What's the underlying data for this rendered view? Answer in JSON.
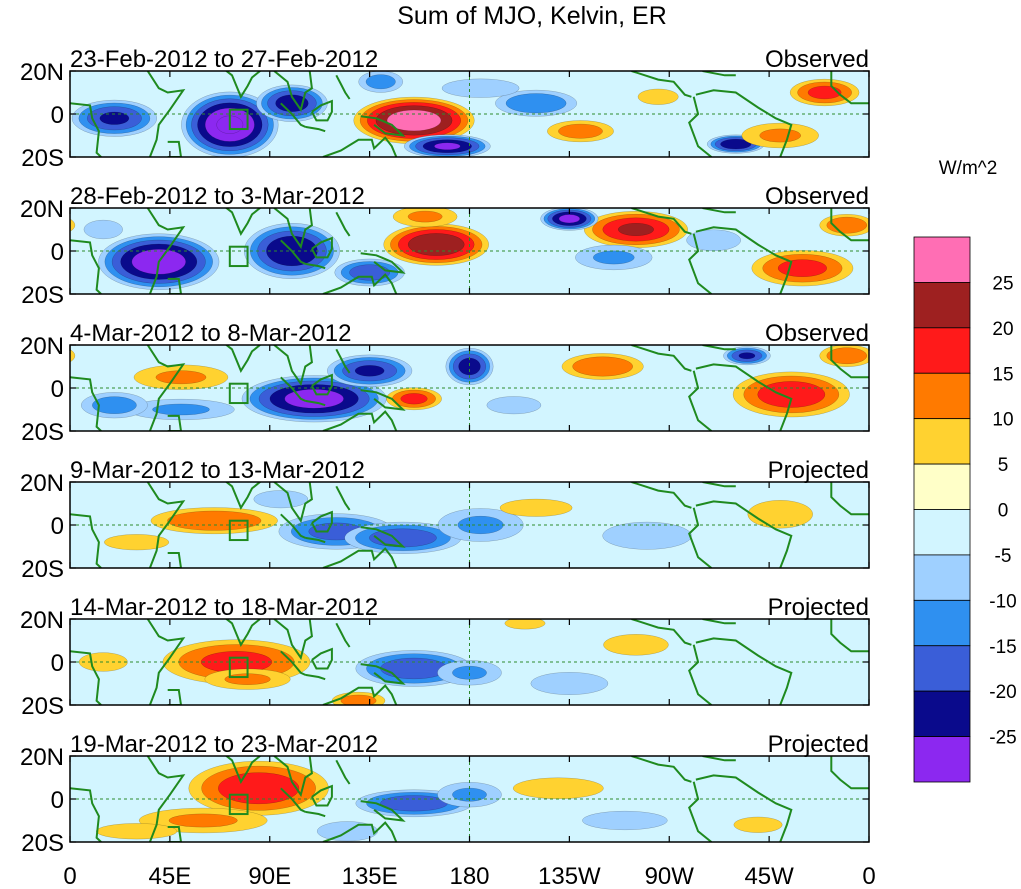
{
  "chart_data": {
    "type": "heatmap",
    "title": "Sum of MJO, Kelvin, ER",
    "units": "W/m^2",
    "x_ticks": [
      "0",
      "45E",
      "90E",
      "135E",
      "180",
      "135W",
      "90W",
      "45W",
      "0"
    ],
    "y_ticks": [
      "20N",
      "0",
      "20S"
    ],
    "xlim": [
      0,
      360
    ],
    "ylim": [
      -20,
      20
    ],
    "colorbar": {
      "labels": [
        "25",
        "20",
        "15",
        "10",
        "5",
        "0",
        "-5",
        "-10",
        "-15",
        "-20",
        "-25"
      ],
      "colors": [
        "#ff6eb4",
        "#9e2020",
        "#ff1a1a",
        "#ff7a00",
        "#ffd230",
        "#ffffc8",
        "#d2f5ff",
        "#9fd0ff",
        "#2f90f0",
        "#3a5ed8",
        "#0a0a8c",
        "#8c28f0"
      ]
    },
    "panels": [
      {
        "dates": "23-Feb-2012 to 27-Feb-2012",
        "kind": "Observed",
        "blobs": [
          [
            72,
            -5,
            20,
            14,
            -30
          ],
          [
            20,
            -2,
            18,
            8,
            -20
          ],
          [
            100,
            5,
            15,
            8,
            -22
          ],
          [
            155,
            -3,
            25,
            10,
            28
          ],
          [
            170,
            -15,
            18,
            5,
            -25
          ],
          [
            140,
            15,
            10,
            5,
            -12
          ],
          [
            210,
            5,
            18,
            6,
            -14
          ],
          [
            230,
            -8,
            15,
            5,
            12
          ],
          [
            300,
            -14,
            12,
            4,
            -24
          ],
          [
            320,
            -10,
            18,
            6,
            10
          ],
          [
            340,
            10,
            15,
            6,
            16
          ],
          [
            265,
            8,
            10,
            4,
            8
          ],
          [
            185,
            12,
            20,
            5,
            -7
          ]
        ]
      },
      {
        "dates": "28-Feb-2012 to 3-Mar-2012",
        "kind": "Observed",
        "blobs": [
          [
            40,
            -5,
            25,
            12,
            -28
          ],
          [
            100,
            0,
            20,
            12,
            -24
          ],
          [
            135,
            -10,
            15,
            6,
            -18
          ],
          [
            165,
            3,
            22,
            9,
            24
          ],
          [
            255,
            10,
            22,
            8,
            20
          ],
          [
            225,
            15,
            12,
            5,
            -26
          ],
          [
            245,
            -3,
            18,
            6,
            -10
          ],
          [
            330,
            -8,
            22,
            8,
            16
          ],
          [
            350,
            12,
            12,
            5,
            14
          ],
          [
            160,
            16,
            15,
            5,
            10
          ],
          [
            15,
            10,
            12,
            6,
            -5
          ],
          [
            290,
            5,
            15,
            6,
            -6
          ]
        ]
      },
      {
        "dates": "4-Mar-2012 to 8-Mar-2012",
        "kind": "Observed",
        "blobs": [
          [
            110,
            -5,
            30,
            10,
            -27
          ],
          [
            135,
            8,
            18,
            7,
            -20
          ],
          [
            180,
            10,
            10,
            8,
            -22
          ],
          [
            50,
            5,
            22,
            6,
            10
          ],
          [
            50,
            -10,
            25,
            5,
            -10
          ],
          [
            155,
            -5,
            12,
            5,
            16
          ],
          [
            240,
            10,
            18,
            6,
            14
          ],
          [
            325,
            -3,
            25,
            10,
            18
          ],
          [
            305,
            15,
            10,
            4,
            -20
          ],
          [
            350,
            15,
            12,
            5,
            14
          ],
          [
            20,
            -8,
            15,
            6,
            -12
          ],
          [
            200,
            -8,
            15,
            5,
            -6
          ]
        ]
      },
      {
        "dates": "9-Mar-2012 to 13-Mar-2012",
        "kind": "Projected",
        "blobs": [
          [
            65,
            2,
            28,
            6,
            14
          ],
          [
            120,
            -3,
            25,
            8,
            -16
          ],
          [
            150,
            -6,
            25,
            7,
            -18
          ],
          [
            185,
            0,
            20,
            8,
            -10
          ],
          [
            210,
            8,
            20,
            5,
            6
          ],
          [
            260,
            -5,
            22,
            7,
            -8
          ],
          [
            320,
            5,
            18,
            8,
            6
          ],
          [
            30,
            -8,
            20,
            5,
            5
          ],
          [
            95,
            12,
            15,
            5,
            -6
          ],
          [
            240,
            15,
            18,
            4,
            4
          ]
        ]
      },
      {
        "dates": "14-Mar-2012 to 18-Mar-2012",
        "kind": "Projected",
        "blobs": [
          [
            75,
            0,
            32,
            10,
            16
          ],
          [
            80,
            -8,
            20,
            5,
            10
          ],
          [
            155,
            -3,
            25,
            8,
            -18
          ],
          [
            180,
            -5,
            15,
            6,
            -10
          ],
          [
            130,
            -18,
            12,
            4,
            12
          ],
          [
            225,
            -10,
            20,
            6,
            -7
          ],
          [
            255,
            8,
            18,
            6,
            6
          ],
          [
            15,
            0,
            15,
            6,
            5
          ],
          [
            320,
            -5,
            25,
            8,
            4
          ],
          [
            205,
            18,
            10,
            3,
            8
          ]
        ]
      },
      {
        "dates": "19-Mar-2012 to 23-Mar-2012",
        "kind": "Projected",
        "blobs": [
          [
            85,
            5,
            30,
            12,
            18
          ],
          [
            60,
            -10,
            30,
            6,
            10
          ],
          [
            155,
            -2,
            25,
            6,
            -18
          ],
          [
            180,
            2,
            15,
            6,
            -10
          ],
          [
            125,
            -15,
            15,
            5,
            -8
          ],
          [
            220,
            5,
            25,
            6,
            6
          ],
          [
            250,
            -10,
            22,
            5,
            -7
          ],
          [
            310,
            -12,
            15,
            5,
            5
          ],
          [
            30,
            -15,
            20,
            4,
            8
          ],
          [
            150,
            15,
            18,
            4,
            4
          ],
          [
            345,
            0,
            10,
            4,
            -4
          ]
        ]
      }
    ]
  }
}
